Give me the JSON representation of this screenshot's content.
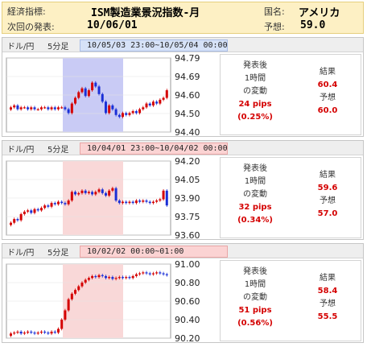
{
  "header": {
    "indicator_label": "経済指標:",
    "indicator_value": "ISM製造業景況指数-月",
    "country_label": "国名:",
    "country_value": "アメリカ",
    "next_label": "次回の発表:",
    "next_value": "10/06/01",
    "forecast_label": "予想:",
    "forecast_value": "59.0"
  },
  "panels": [
    {
      "pair": "ドル/円",
      "timeframe": "5分足",
      "range": "10/05/03 23:00~10/05/04 00:00",
      "highlight": "#c9cbf5",
      "range_bg": "#d6e2f7",
      "chart_data": {
        "type": "candlestick",
        "ylim": [
          94.4,
          94.79
        ],
        "yticks": [
          "94.79",
          "94.69",
          "94.60",
          "94.50",
          "94.40"
        ],
        "close": [
          94.53,
          94.54,
          94.52,
          94.53,
          94.53,
          94.52,
          94.53,
          94.52,
          94.52,
          94.53,
          94.53,
          94.52,
          94.53,
          94.52,
          94.53,
          94.53,
          94.52,
          94.5,
          94.55,
          94.58,
          94.61,
          94.63,
          94.59,
          94.62,
          94.66,
          94.64,
          94.6,
          94.56,
          94.5,
          94.54,
          94.52,
          94.49,
          94.48,
          94.5,
          94.49,
          94.5,
          94.51,
          94.5,
          94.52,
          94.53,
          94.55,
          94.54,
          94.56,
          94.55,
          94.57,
          94.58,
          94.62
        ]
      }
    },
    {
      "pair": "ドル/円",
      "timeframe": "5分足",
      "range": "10/04/01 23:00~10/04/02 00:00",
      "highlight": "#f9d8d8",
      "range_bg": "#fbd3d3",
      "chart_data": {
        "type": "candlestick",
        "ylim": [
          93.6,
          94.2
        ],
        "yticks": [
          "94.20",
          "94.05",
          "93.90",
          "93.75",
          "93.60"
        ],
        "close": [
          93.7,
          93.73,
          93.72,
          93.77,
          93.79,
          93.8,
          93.78,
          93.81,
          93.8,
          93.82,
          93.84,
          93.83,
          93.86,
          93.85,
          93.87,
          93.86,
          93.85,
          93.88,
          93.95,
          93.93,
          93.94,
          93.96,
          93.94,
          93.95,
          93.93,
          93.95,
          93.97,
          93.94,
          93.92,
          93.96,
          93.98,
          93.88,
          93.86,
          93.87,
          93.86,
          93.87,
          93.86,
          93.88,
          93.87,
          93.88,
          93.87,
          93.86,
          93.87,
          93.88,
          93.89,
          93.96,
          93.84
        ]
      }
    },
    {
      "pair": "ドル/円",
      "timeframe": "5分足",
      "range": "10/02/02 00:00~01:00",
      "highlight": "#f9d8d8",
      "range_bg": "#fbd3d3",
      "chart_data": {
        "type": "candlestick",
        "ylim": [
          90.2,
          91.0
        ],
        "yticks": [
          "91.00",
          "90.80",
          "90.60",
          "90.40",
          "90.20"
        ],
        "close": [
          90.25,
          90.26,
          90.27,
          90.25,
          90.26,
          90.27,
          90.26,
          90.25,
          90.26,
          90.27,
          90.26,
          90.25,
          90.27,
          90.26,
          90.3,
          90.4,
          90.5,
          90.62,
          90.68,
          90.72,
          90.76,
          90.8,
          90.83,
          90.85,
          90.87,
          90.86,
          90.88,
          90.87,
          90.85,
          90.86,
          90.84,
          90.85,
          90.86,
          90.85,
          90.86,
          90.85,
          90.87,
          90.89,
          90.9,
          90.91,
          90.9,
          90.89,
          90.9,
          90.91,
          90.9,
          90.89,
          90.88
        ]
      }
    }
  ],
  "results": [
    {
      "after_label": "発表後",
      "hour_label": "1時間",
      "change_label": "の変動",
      "pips": "24 pips",
      "pct": "(0.25%)",
      "result_label": "結果",
      "result_value": "60.4",
      "forecast_label": "予想",
      "forecast_value": "60.0"
    },
    {
      "after_label": "発表後",
      "hour_label": "1時間",
      "change_label": "の変動",
      "pips": "32 pips",
      "pct": "(0.34%)",
      "result_label": "結果",
      "result_value": "59.6",
      "forecast_label": "予想",
      "forecast_value": "57.0"
    },
    {
      "after_label": "発表後",
      "hour_label": "1時間",
      "change_label": "の変動",
      "pips": "51 pips",
      "pct": "(0.56%)",
      "result_label": "結果",
      "result_value": "58.4",
      "forecast_label": "予想",
      "forecast_value": "55.5"
    }
  ],
  "colors": {
    "up": "#d40000",
    "down": "#1a2fd6"
  }
}
